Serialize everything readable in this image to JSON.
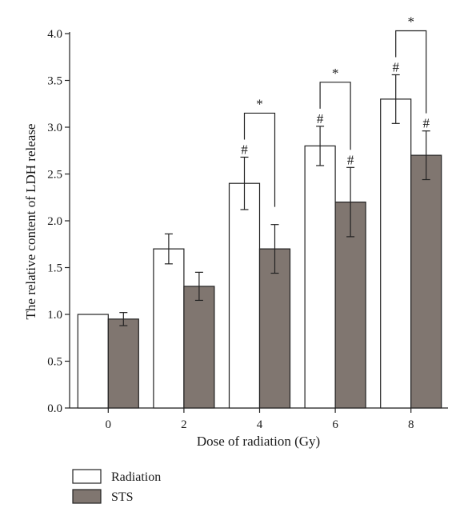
{
  "chart_data": {
    "type": "bar",
    "title": "",
    "xlabel": "Dose of radiation (Gy)",
    "ylabel": "The relative content of LDH release",
    "categories": [
      "0",
      "2",
      "4",
      "6",
      "8"
    ],
    "ylim": [
      0,
      4.0
    ],
    "yticks": [
      "0.0",
      "0.5",
      "1.0",
      "1.5",
      "2.0",
      "2.5",
      "3.0",
      "3.5",
      "4.0"
    ],
    "grid": false,
    "legend_position": "bottom-left",
    "series": [
      {
        "name": "Radiation",
        "fill": "#ffffff",
        "values": [
          1.0,
          1.7,
          2.4,
          2.8,
          3.3
        ],
        "errors": [
          0,
          0.16,
          0.28,
          0.21,
          0.26
        ],
        "marks": [
          "",
          "",
          "#",
          "#",
          "#"
        ]
      },
      {
        "name": "STS",
        "fill": "#807670",
        "values": [
          0.95,
          1.3,
          1.7,
          2.2,
          2.7
        ],
        "errors": [
          0.07,
          0.15,
          0.26,
          0.37,
          0.26
        ],
        "marks": [
          "",
          "",
          "",
          "#",
          "#"
        ]
      }
    ],
    "significance": [
      {
        "category": "4",
        "symbol": "*"
      },
      {
        "category": "6",
        "symbol": "*"
      },
      {
        "category": "8",
        "symbol": "*"
      }
    ]
  }
}
